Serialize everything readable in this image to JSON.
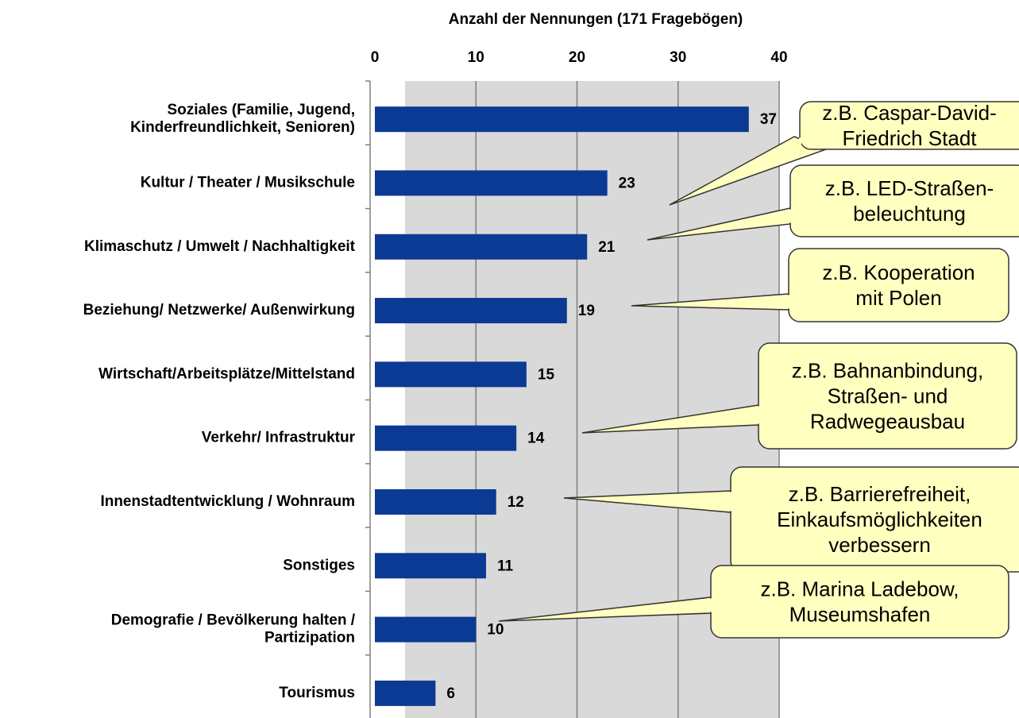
{
  "chart_data": {
    "type": "bar",
    "orientation": "horizontal",
    "x_axis_label": "Anzahl der Nennungen (171 Fragebögen)",
    "categories": [
      "Soziales (Familie, Jugend,\nKinderfreundlichkeit, Senioren)",
      "Kultur / Theater / Musikschule",
      "Klimaschutz / Umwelt / Nachhaltigkeit",
      "Beziehung/ Netzwerke/ Außenwirkung",
      "Wirtschaft/Arbeitsplätze/Mittelstand",
      "Verkehr/ Infrastruktur",
      "Innenstadtentwicklung / Wohnraum",
      "Sonstiges",
      "Demografie / Bevölkerung halten /\nPartizipation",
      "Tourismus"
    ],
    "values": [
      37,
      23,
      21,
      19,
      15,
      14,
      12,
      11,
      10,
      6
    ],
    "color": "#0b3a94",
    "xlim": [
      0,
      40
    ],
    "xticks": [
      0,
      10,
      20,
      30,
      40
    ],
    "grid": true,
    "annotations": [
      "z.B. Caspar-David-\nFriedrich Stadt",
      "z.B. LED-Straßen-\nbeleuchtung",
      "z.B. Kooperation\nmit Polen",
      "z.B. Bahnanbindung,\nStraßen- und\nRadwegeausbau",
      "z.B. Barrierefreiheit,\nEinkaufsmöglichkeiten\nverbessern",
      "z.B. Marina Ladebow,\nMuseumshafen"
    ]
  }
}
